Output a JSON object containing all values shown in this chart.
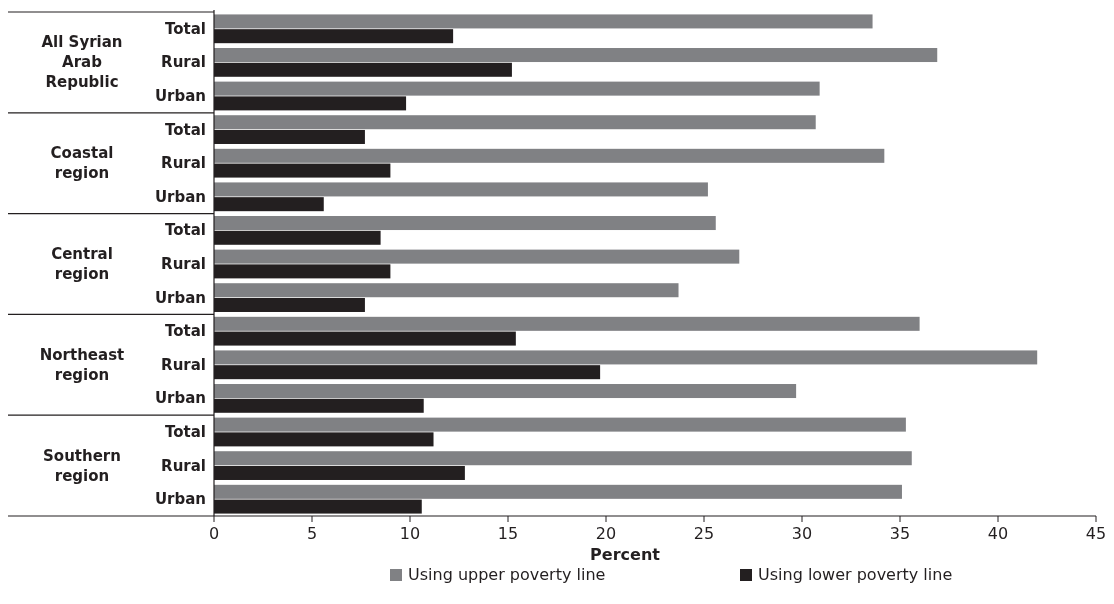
{
  "chart_data": {
    "type": "bar",
    "orientation": "horizontal",
    "xlabel": "Percent",
    "categories": [
      "Total",
      "Rural",
      "Urban",
      "Total",
      "Rural",
      "Urban",
      "Total",
      "Rural",
      "Urban",
      "Total",
      "Rural",
      "Urban",
      "Total",
      "Rural",
      "Urban"
    ],
    "annotations": [
      "All Syrian Arab Republic",
      "Coastal region",
      "Central region",
      "Northeast region",
      "Southern region"
    ],
    "series": [
      {
        "name": "Using upper poverty line",
        "color": "#808184",
        "values": [
          33.6,
          36.9,
          30.9,
          30.7,
          34.2,
          25.2,
          25.6,
          26.8,
          23.7,
          36.0,
          42.0,
          29.7,
          35.3,
          35.6,
          35.1
        ]
      },
      {
        "name": "Using lower poverty line",
        "color": "#231f20",
        "values": [
          12.2,
          15.2,
          9.8,
          7.7,
          9.0,
          5.6,
          8.5,
          9.0,
          7.7,
          15.4,
          19.7,
          10.7,
          11.2,
          12.8,
          10.6
        ]
      }
    ],
    "xlim": [
      0,
      45
    ],
    "xticks": [
      0,
      5,
      10,
      15,
      20,
      25,
      30,
      35,
      40,
      45
    ],
    "legend": "bottom"
  }
}
